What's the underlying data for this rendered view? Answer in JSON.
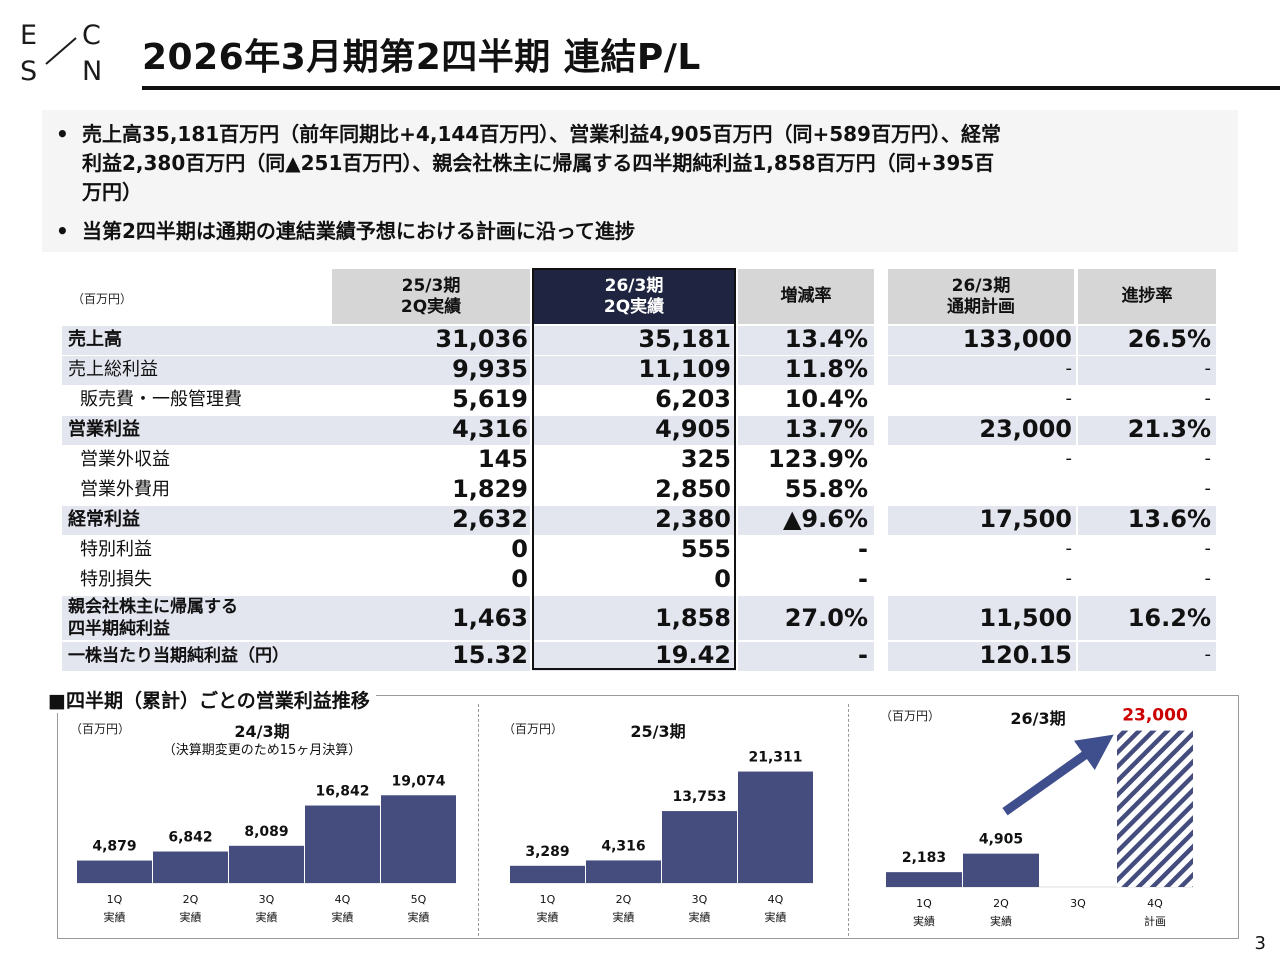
{
  "logo": {
    "letters": [
      "E",
      "C",
      "S",
      "N"
    ]
  },
  "header": {
    "title": "2026年3月期第2四半期 連結P/L"
  },
  "bullets": [
    "売上高35,181百万円（前年同期比+4,144百万円）、営業利益4,905百万円（同+589百万円）、経常\n利益2,380百万円（同▲251百万円）、親会社株主に帰属する四半期純利益1,858百万円（同+395百\n万円）",
    "当第2四半期は通期の連結業績予想における計画に沿って進捗"
  ],
  "bullet_mark": "•",
  "table": {
    "unit": "（百万円）",
    "headers": [
      "25/3期\n2Q実績",
      "26/3期\n2Q実績",
      "増減率",
      "26/3期\n通期計画",
      "進捗率"
    ],
    "rows": [
      {
        "label": "売上高",
        "values": [
          "31,036",
          "35,181",
          "13.4%",
          "133,000",
          "26.5%"
        ]
      },
      {
        "label": "売上総利益",
        "values": [
          "9,935",
          "11,109",
          "11.8%",
          "-",
          "-"
        ]
      },
      {
        "label": "販売費・一般管理費",
        "values": [
          "5,619",
          "6,203",
          "10.4%",
          "-",
          "-"
        ]
      },
      {
        "label": "営業利益",
        "values": [
          "4,316",
          "4,905",
          "13.7%",
          "23,000",
          "21.3%"
        ]
      },
      {
        "label": "営業外収益",
        "values": [
          "145",
          "325",
          "123.9%",
          "-",
          "-"
        ]
      },
      {
        "label": "営業外費用",
        "values": [
          "1,829",
          "2,850",
          "55.8%",
          "",
          "-"
        ]
      },
      {
        "label": "経常利益",
        "values": [
          "2,632",
          "2,380",
          "▲9.6%",
          "17,500",
          "13.6%"
        ]
      },
      {
        "label": "特別利益",
        "values": [
          "0",
          "555",
          "-",
          "-",
          "-"
        ]
      },
      {
        "label": "特別損失",
        "values": [
          "0",
          "0",
          "-",
          "-",
          "-"
        ]
      },
      {
        "label": "親会社株主に帰属する\n四半期純利益",
        "values": [
          "1,463",
          "1,858",
          "27.0%",
          "11,500",
          "16.2%"
        ]
      },
      {
        "label": "一株当たり当期純利益（円）",
        "values": [
          "15.32",
          "19.42",
          "-",
          "120.15",
          "-"
        ]
      }
    ]
  },
  "chart_section_title": "■四半期（累計）ごとの営業利益推移",
  "chart_data": [
    {
      "type": "bar",
      "title": "24/3期",
      "subtitle": "（決算期変更のため15ヶ月決算）",
      "unit": "（百万円）",
      "categories": [
        "1Q\n実績",
        "2Q\n実績",
        "3Q\n実績",
        "4Q\n実績",
        "5Q\n実績"
      ],
      "values": [
        4879,
        6842,
        8089,
        16842,
        19074
      ],
      "labels": [
        "4,879",
        "6,842",
        "8,089",
        "16,842",
        "19,074"
      ],
      "ylim": [
        0,
        24000
      ],
      "color": "#454d7e"
    },
    {
      "type": "bar",
      "title": "25/3期",
      "unit": "（百万円）",
      "categories": [
        "1Q\n実績",
        "2Q\n実績",
        "3Q\n実績",
        "4Q\n実績"
      ],
      "values": [
        3289,
        4316,
        13753,
        21311
      ],
      "labels": [
        "3,289",
        "4,316",
        "13,753",
        "21,311"
      ],
      "ylim": [
        0,
        24000
      ],
      "color": "#454d7e"
    },
    {
      "type": "bar",
      "title": "26/3期",
      "unit": "（百万円）",
      "categories": [
        "1Q\n実績",
        "2Q\n実績",
        "3Q",
        "4Q\n計画"
      ],
      "values": [
        2183,
        4905,
        null,
        23000
      ],
      "labels": [
        "2,183",
        "4,905",
        "",
        "23,000"
      ],
      "plan_index": 3,
      "ylim": [
        0,
        24000
      ],
      "color": "#454d7e",
      "plan_color": "#cc0000"
    }
  ],
  "page_number": "3"
}
